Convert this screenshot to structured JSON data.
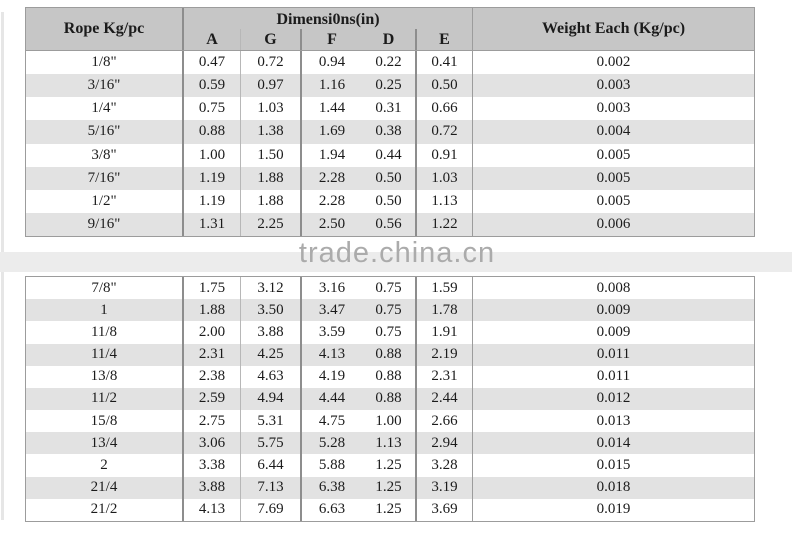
{
  "table": {
    "col_rope": "Rope Kg/pc",
    "col_dimensions_group": "Dimensi0ns(in)",
    "dim_letters": [
      "A",
      "G",
      "F",
      "D",
      "E"
    ],
    "col_weight": "Weight Each (Kg/pc)",
    "cell_names": [
      "cell-rope",
      "cell-a",
      "cell-g",
      "cell-f",
      "cell-d",
      "cell-e",
      "cell-weight"
    ],
    "rows_top": [
      [
        "1/8\"",
        "0.47",
        "0.72",
        "0.94",
        "0.22",
        "0.41",
        "0.002"
      ],
      [
        "3/16\"",
        "0.59",
        "0.97",
        "1.16",
        "0.25",
        "0.50",
        "0.003"
      ],
      [
        "1/4\"",
        "0.75",
        "1.03",
        "1.44",
        "0.31",
        "0.66",
        "0.003"
      ],
      [
        "5/16\"",
        "0.88",
        "1.38",
        "1.69",
        "0.38",
        "0.72",
        "0.004"
      ],
      [
        "3/8\"",
        "1.00",
        "1.50",
        "1.94",
        "0.44",
        "0.91",
        "0.005"
      ],
      [
        "7/16\"",
        "1.19",
        "1.88",
        "2.28",
        "0.50",
        "1.03",
        "0.005"
      ],
      [
        "1/2\"",
        "1.19",
        "1.88",
        "2.28",
        "0.50",
        "1.13",
        "0.005"
      ],
      [
        "9/16\"",
        "1.31",
        "2.25",
        "2.50",
        "0.56",
        "1.22",
        "0.006"
      ]
    ],
    "rows_bottom": [
      [
        "7/8\"",
        "1.75",
        "3.12",
        "3.16",
        "0.75",
        "1.59",
        "0.008"
      ],
      [
        "1",
        "1.88",
        "3.50",
        "3.47",
        "0.75",
        "1.78",
        "0.009"
      ],
      [
        "11/8",
        "2.00",
        "3.88",
        "3.59",
        "0.75",
        "1.91",
        "0.009"
      ],
      [
        "11/4",
        "2.31",
        "4.25",
        "4.13",
        "0.88",
        "2.19",
        "0.011"
      ],
      [
        "13/8",
        "2.38",
        "4.63",
        "4.19",
        "0.88",
        "2.31",
        "0.011"
      ],
      [
        "11/2",
        "2.59",
        "4.94",
        "4.44",
        "0.88",
        "2.44",
        "0.012"
      ],
      [
        "15/8",
        "2.75",
        "5.31",
        "4.75",
        "1.00",
        "2.66",
        "0.013"
      ],
      [
        "13/4",
        "3.06",
        "5.75",
        "5.28",
        "1.13",
        "2.94",
        "0.014"
      ],
      [
        "2",
        "3.38",
        "6.44",
        "5.88",
        "1.25",
        "3.28",
        "0.015"
      ],
      [
        "21/4",
        "3.88",
        "7.13",
        "6.38",
        "1.25",
        "3.19",
        "0.018"
      ],
      [
        "21/2",
        "4.13",
        "7.69",
        "6.63",
        "1.25",
        "3.69",
        "0.019"
      ]
    ]
  },
  "watermark": {
    "text": "trade.china.cn"
  },
  "colors": {
    "header_bg": "#c6c6c6",
    "row_stripe": "#e2e2e2",
    "border_dark": "#8d8d8d",
    "border_mid": "#9c9c9c",
    "watermark_text": "#ababab",
    "watermark_band": "#ececec",
    "text": "#1b1b1b"
  }
}
